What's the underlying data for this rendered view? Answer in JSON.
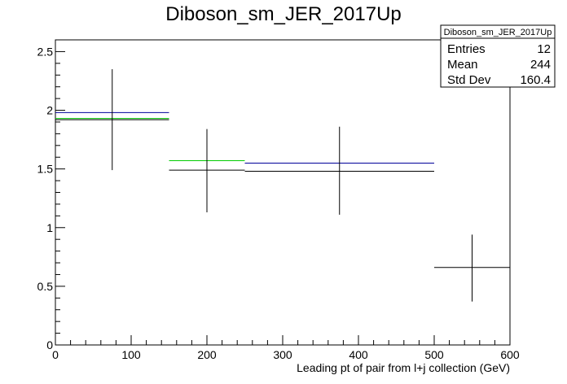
{
  "chart_data": {
    "type": "scatter",
    "title": "Diboson_sm_JER_2017Up",
    "xlabel": "Leading pt of pair from l+j collection (GeV)",
    "ylabel": "",
    "xlim": [
      0,
      600
    ],
    "ylim": [
      0,
      2.6
    ],
    "x_ticks": [
      "0",
      "100",
      "200",
      "300",
      "400",
      "500",
      "600"
    ],
    "y_ticks": [
      "0",
      "0.5",
      "1",
      "1.5",
      "2",
      "2.5"
    ],
    "grid": false,
    "series": [
      {
        "color": "#000000",
        "points": [
          {
            "x_low": 0,
            "x_high": 150,
            "x": 75,
            "y": 1.92,
            "y_low": 1.49,
            "y_high": 2.35
          },
          {
            "x_low": 150,
            "x_high": 250,
            "x": 200,
            "y": 1.49,
            "y_low": 1.13,
            "y_high": 1.84
          },
          {
            "x_low": 250,
            "x_high": 500,
            "x": 375,
            "y": 1.48,
            "y_low": 1.11,
            "y_high": 1.86
          },
          {
            "x_low": 500,
            "x_high": 600,
            "x": 550,
            "y": 0.66,
            "y_low": 0.37,
            "y_high": 0.94
          }
        ]
      },
      {
        "color": "#00cc00",
        "points": [
          {
            "x_low": 0,
            "x_high": 150,
            "y": 1.93
          },
          {
            "x_low": 150,
            "x_high": 250,
            "y": 1.57
          }
        ]
      },
      {
        "color": "#000099",
        "points": [
          {
            "x_low": 0,
            "x_high": 150,
            "y": 1.98
          },
          {
            "x_low": 250,
            "x_high": 500,
            "y": 1.55
          }
        ]
      }
    ],
    "stats_box": {
      "title": "Diboson_sm_JER_2017Up",
      "rows": [
        {
          "label": "Entries",
          "value": "12"
        },
        {
          "label": "Mean",
          "value": "244"
        },
        {
          "label": "Std Dev",
          "value": "160.4"
        }
      ]
    }
  }
}
